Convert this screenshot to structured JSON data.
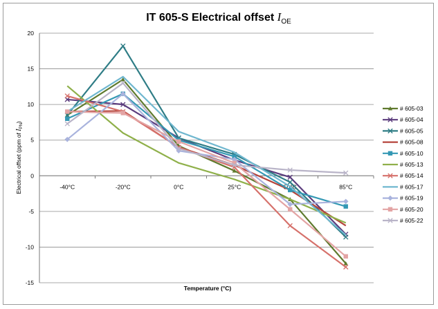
{
  "chart_data": {
    "type": "line",
    "title": "IT 605-S Electrical offset",
    "title_symbol": "I",
    "title_subscript": "OE",
    "xlabel": "Temperature (°C)",
    "ylabel_prefix": "Electrical offset (ppm of ",
    "ylabel_symbol": "I",
    "ylabel_subscript": "PN",
    "ylabel_suffix": ")",
    "categories": [
      "-40°C",
      "-20°C",
      "0°C",
      "25°C",
      "50°C",
      "85°C"
    ],
    "ylim": [
      -15,
      20
    ],
    "yticks": [
      "20",
      "15",
      "10",
      "5",
      "0",
      "-5",
      "-10",
      "-15"
    ],
    "grid": true,
    "legend_position": "right",
    "series": [
      {
        "name": "# 605-03",
        "color": "#5f7a2e",
        "marker": "triangle",
        "values": [
          8.5,
          13.5,
          4.2,
          0.7,
          -3.3,
          -12.3
        ]
      },
      {
        "name": "# 605-04",
        "color": "#5b3c7d",
        "marker": "x",
        "values": [
          10.7,
          10.0,
          5.3,
          2.2,
          -0.2,
          -8.2
        ]
      },
      {
        "name": "# 605-05",
        "color": "#2f7d86",
        "marker": "x",
        "values": [
          8.5,
          18.2,
          5.3,
          3.0,
          -0.9,
          -8.6
        ]
      },
      {
        "name": "# 605-08",
        "color": "#b5443b",
        "marker": "none",
        "values": [
          9.0,
          9.1,
          4.0,
          1.5,
          -2.0,
          -7.0
        ]
      },
      {
        "name": "# 605-10",
        "color": "#3498b4",
        "marker": "square",
        "values": [
          8.0,
          11.5,
          5.0,
          2.7,
          -2.0,
          -4.3
        ]
      },
      {
        "name": "# 605-13",
        "color": "#8fb04a",
        "marker": "none",
        "values": [
          12.6,
          6.0,
          1.8,
          -0.5,
          -3.3,
          -6.6
        ]
      },
      {
        "name": "# 605-14",
        "color": "#d6716b",
        "marker": "x",
        "values": [
          11.2,
          9.0,
          4.0,
          1.2,
          -7.0,
          -12.8
        ]
      },
      {
        "name": "# 605-17",
        "color": "#6fb7cf",
        "marker": "none",
        "values": [
          9.0,
          13.9,
          6.2,
          3.3,
          -1.5,
          -8.3
        ]
      },
      {
        "name": "# 605-19",
        "color": "#a9b3dd",
        "marker": "diamond",
        "values": [
          5.1,
          11.5,
          3.5,
          2.3,
          -4.0,
          -3.6
        ]
      },
      {
        "name": "# 605-20",
        "color": "#e3a4a4",
        "marker": "square",
        "values": [
          9.0,
          8.8,
          4.8,
          1.8,
          -4.7,
          -11.3
        ]
      },
      {
        "name": "# 605-22",
        "color": "#b9b4c8",
        "marker": "x",
        "values": [
          7.3,
          13.0,
          3.8,
          1.5,
          0.8,
          0.4
        ]
      }
    ]
  }
}
